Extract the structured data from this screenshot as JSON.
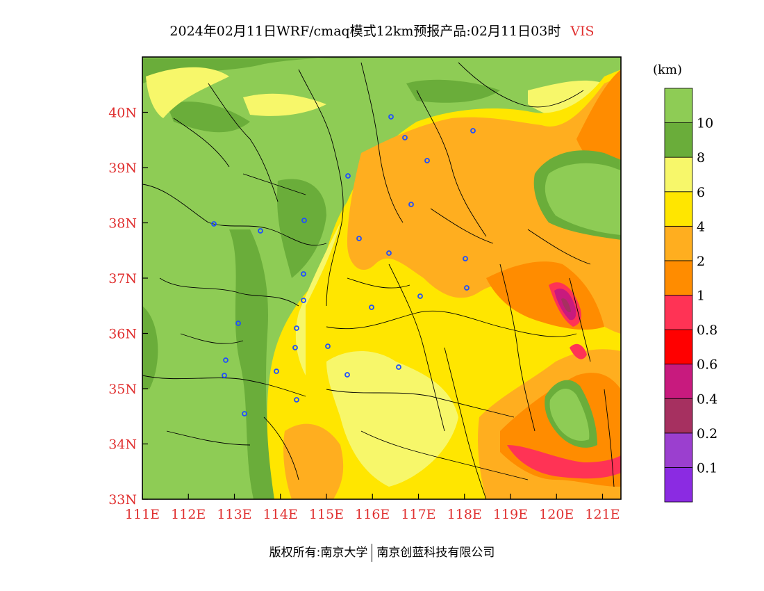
{
  "title": {
    "main": "2024年02月11日WRF/cmaq模式12km预报产品:02月11日03时",
    "variable": "VIS"
  },
  "unit": "(km)",
  "footer": {
    "left": "版权所有:南京大学",
    "right": "南京创蓝科技有限公司"
  },
  "colors": {
    "axis_label": "#e03030",
    "station_marker": "#1f4fff"
  },
  "map": {
    "lon_ticks": [
      "111E",
      "112E",
      "113E",
      "114E",
      "115E",
      "116E",
      "117E",
      "118E",
      "119E",
      "120E",
      "121E"
    ],
    "lat_ticks": [
      "33N",
      "34N",
      "35N",
      "36N",
      "37N",
      "38N",
      "39N",
      "40N"
    ],
    "lon_range": [
      111,
      121.4
    ],
    "lat_range": [
      33,
      41
    ]
  },
  "legend": {
    "bins": [
      {
        "color": "#8b2be2",
        "label": "0.1"
      },
      {
        "color": "#9b3fcf",
        "label": "0.2"
      },
      {
        "color": "#a63060",
        "label": "0.4"
      },
      {
        "color": "#c81a7e",
        "label": "0.6"
      },
      {
        "color": "#ff0000",
        "label": "0.8"
      },
      {
        "color": "#ff3355",
        "label": "1"
      },
      {
        "color": "#ff8c00",
        "label": "2"
      },
      {
        "color": "#ffae1f",
        "label": "4"
      },
      {
        "color": "#ffe600",
        "label": "6"
      },
      {
        "color": "#f7f76a",
        "label": "8"
      },
      {
        "color": "#6aad3a",
        "label": "10"
      },
      {
        "color": "#8ecc55",
        "label": ""
      }
    ]
  }
}
